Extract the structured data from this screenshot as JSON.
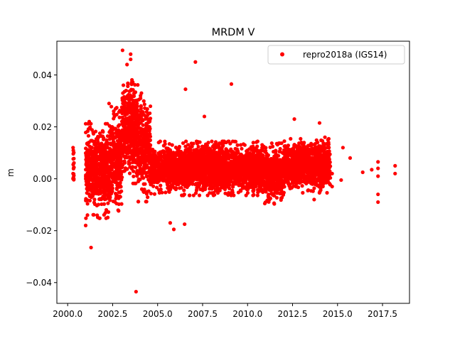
{
  "chart_data": {
    "type": "scatter",
    "title": "MRDM V",
    "xlabel": "",
    "ylabel": "m",
    "xlim": [
      1999.4,
      2019.0
    ],
    "ylim": [
      -0.048,
      0.053
    ],
    "x_ticks": [
      2000.0,
      2002.5,
      2005.0,
      2007.5,
      2010.0,
      2012.5,
      2015.0,
      2017.5
    ],
    "x_tick_labels": [
      "2000.0",
      "2002.5",
      "2005.0",
      "2007.5",
      "2010.0",
      "2012.5",
      "2015.0",
      "2017.5"
    ],
    "y_ticks": [
      -0.04,
      -0.02,
      0.0,
      0.02,
      0.04
    ],
    "y_tick_labels": [
      "−0.04",
      "−0.02",
      "0.00",
      "0.02",
      "0.04"
    ],
    "grid": false,
    "legend_position": "top-right",
    "series": [
      {
        "name": "repro2018a (IGS14)",
        "color": "#ff0000",
        "marker": "circle",
        "clusters": [
          {
            "x_range": [
              2000.3,
              2000.35
            ],
            "y_mean": 0.006,
            "y_sd": 0.004,
            "count": 15
          },
          {
            "x_range": [
              2001.0,
              2002.3
            ],
            "y_mean": 0.003,
            "y_sd": 0.007,
            "count": 550
          },
          {
            "x_range": [
              2002.3,
              2003.0
            ],
            "y_mean": 0.007,
            "y_sd": 0.008,
            "count": 300
          },
          {
            "x_range": [
              2003.0,
              2003.9
            ],
            "y_mean": 0.019,
            "y_sd": 0.008,
            "count": 450
          },
          {
            "x_range": [
              2003.9,
              2004.6
            ],
            "y_mean": 0.012,
            "y_sd": 0.008,
            "count": 300
          },
          {
            "x_range": [
              2004.6,
              2005.5
            ],
            "y_mean": 0.004,
            "y_sd": 0.004,
            "count": 250
          },
          {
            "x_range": [
              2005.5,
              2010.9
            ],
            "y_mean": 0.004,
            "y_sd": 0.004,
            "count": 2500
          },
          {
            "x_range": [
              2010.9,
              2012.0
            ],
            "y_mean": 0.002,
            "y_sd": 0.0045,
            "count": 450
          },
          {
            "x_range": [
              2012.0,
              2014.6
            ],
            "y_mean": 0.005,
            "y_sd": 0.004,
            "count": 1100
          }
        ],
        "points": [
          [
            2000.3,
            0.012
          ],
          [
            2000.3,
            0.0
          ],
          [
            2000.3,
            0.002
          ],
          [
            2001.0,
            -0.018
          ],
          [
            2001.1,
            -0.014
          ],
          [
            2001.3,
            -0.0265
          ],
          [
            2001.2,
            0.022
          ],
          [
            2002.3,
            0.029
          ],
          [
            2002.6,
            0.024
          ],
          [
            2003.05,
            0.0495
          ],
          [
            2003.3,
            0.044
          ],
          [
            2003.5,
            0.048
          ],
          [
            2003.5,
            0.046
          ],
          [
            2003.8,
            -0.0435
          ],
          [
            2004.05,
            0.031
          ],
          [
            2004.1,
            0.033
          ],
          [
            2004.05,
            0.032
          ],
          [
            2005.7,
            -0.017
          ],
          [
            2005.9,
            -0.0195
          ],
          [
            2006.5,
            -0.0175
          ],
          [
            2006.55,
            0.0345
          ],
          [
            2007.1,
            0.045
          ],
          [
            2007.6,
            0.024
          ],
          [
            2009.1,
            0.0365
          ],
          [
            2012.6,
            0.023
          ],
          [
            2013.7,
            -0.008
          ],
          [
            2014.0,
            0.0215
          ],
          [
            2014.3,
            0.016
          ],
          [
            2014.5,
            0.014
          ],
          [
            2014.7,
            0.002
          ],
          [
            2014.7,
            -0.003
          ],
          [
            2015.2,
            -0.0005
          ],
          [
            2015.3,
            0.012
          ],
          [
            2015.7,
            0.008
          ],
          [
            2016.4,
            0.0025
          ],
          [
            2016.9,
            0.0035
          ],
          [
            2017.25,
            0.0065
          ],
          [
            2017.25,
            0.004
          ],
          [
            2017.25,
            0.001
          ],
          [
            2017.25,
            -0.006
          ],
          [
            2017.25,
            -0.009
          ],
          [
            2018.2,
            0.005
          ],
          [
            2018.2,
            0.002
          ]
        ]
      }
    ]
  }
}
